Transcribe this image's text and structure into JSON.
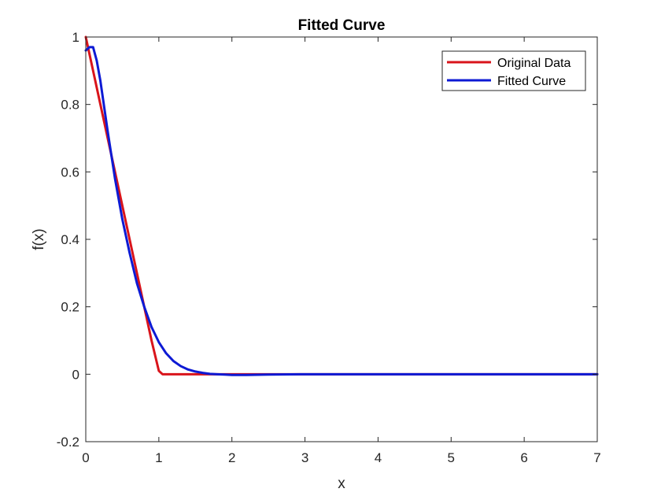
{
  "chart_data": {
    "type": "line",
    "title": "Fitted Curve",
    "xlabel": "x",
    "ylabel": "f(x)",
    "xlim": [
      0,
      7
    ],
    "ylim": [
      -0.2,
      1
    ],
    "xticks": [
      "0",
      "1",
      "2",
      "3",
      "4",
      "5",
      "6",
      "7"
    ],
    "yticks": [
      "-0.2",
      "0",
      "0.2",
      "0.4",
      "0.6",
      "0.8",
      "1"
    ],
    "grid": false,
    "legend_position": "top-right",
    "series": [
      {
        "name": "Original Data",
        "color": "#d9141b",
        "x": [
          0,
          0.1,
          0.3,
          0.5,
          0.7,
          0.9,
          1.0,
          1.05,
          1.1,
          1.5,
          2.0,
          3.0,
          4.0,
          5.0,
          6.0,
          7.0
        ],
        "y": [
          1.0,
          0.9,
          0.7,
          0.5,
          0.3,
          0.1,
          0.01,
          0.0,
          0.0,
          0.0,
          0.0,
          0.0,
          0.0,
          0.0,
          0.0,
          0.0
        ]
      },
      {
        "name": "Fitted Curve",
        "color": "#0d1ad4",
        "x": [
          0,
          0.05,
          0.1,
          0.15,
          0.2,
          0.3,
          0.4,
          0.5,
          0.6,
          0.7,
          0.8,
          0.9,
          1.0,
          1.1,
          1.2,
          1.3,
          1.4,
          1.5,
          1.6,
          1.7,
          1.8,
          1.9,
          2.0,
          2.2,
          2.5,
          3.0,
          4.0,
          5.0,
          6.0,
          7.0
        ],
        "y": [
          0.96,
          0.97,
          0.97,
          0.93,
          0.87,
          0.72,
          0.58,
          0.46,
          0.36,
          0.27,
          0.2,
          0.14,
          0.095,
          0.062,
          0.039,
          0.024,
          0.014,
          0.008,
          0.004,
          0.001,
          0.0,
          -0.001,
          -0.002,
          -0.002,
          -0.001,
          0.0,
          0.0,
          0.0,
          0.0,
          0.0
        ]
      }
    ]
  }
}
